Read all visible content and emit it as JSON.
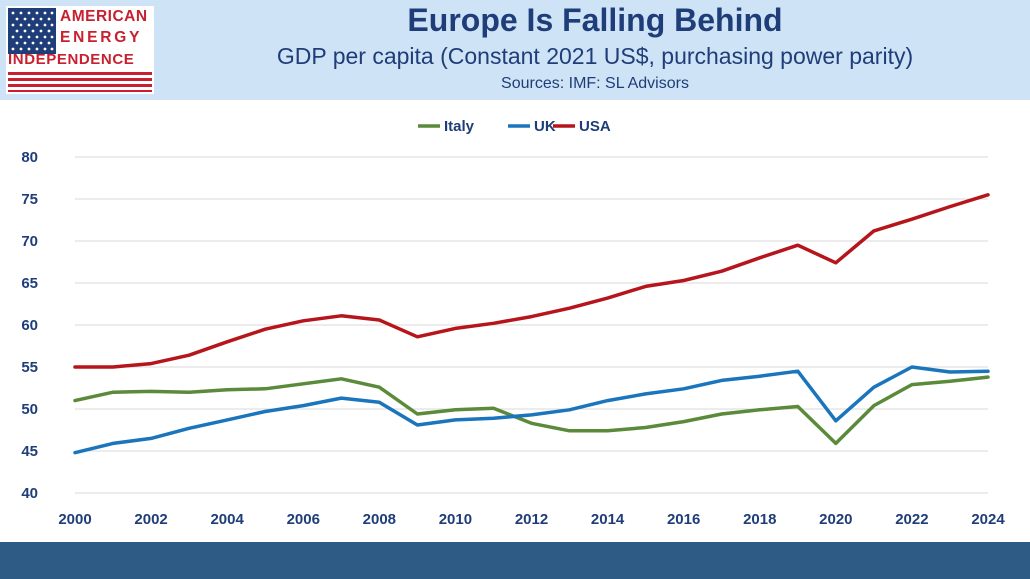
{
  "header": {
    "title": "Europe Is Falling Behind",
    "subtitle": "GDP per capita (Constant 2021 US$, purchasing power parity)",
    "sources": "Sources: IMF: SL Advisors"
  },
  "logo": {
    "line1": "AMERICAN",
    "line2": "ENERGY",
    "line3": "INDEPENDENCE",
    "flag_icon": "us-flag-icon",
    "colors": {
      "red": "#c8202f",
      "blue": "#1f3d78"
    }
  },
  "chart_data": {
    "type": "line",
    "title": "Europe Is Falling Behind",
    "xlabel": "",
    "ylabel": "",
    "ylim": [
      40,
      80
    ],
    "yticks": [
      40,
      45,
      50,
      55,
      60,
      65,
      70,
      75,
      80
    ],
    "xlim": [
      2000,
      2024
    ],
    "xticks": [
      2000,
      2002,
      2004,
      2006,
      2008,
      2010,
      2012,
      2014,
      2016,
      2018,
      2020,
      2022,
      2024
    ],
    "grid": "horizontal",
    "legend_position": "top-center",
    "x": [
      2000,
      2001,
      2002,
      2003,
      2004,
      2005,
      2006,
      2007,
      2008,
      2009,
      2010,
      2011,
      2012,
      2013,
      2014,
      2015,
      2016,
      2017,
      2018,
      2019,
      2020,
      2021,
      2022,
      2023,
      2024
    ],
    "series": [
      {
        "name": "Italy",
        "color": "#5a8a3a",
        "values": [
          51.0,
          52.0,
          52.1,
          52.0,
          52.3,
          52.4,
          53.0,
          53.6,
          52.6,
          49.4,
          49.9,
          50.1,
          48.3,
          47.4,
          47.4,
          47.8,
          48.5,
          49.4,
          49.9,
          50.3,
          45.9,
          50.4,
          52.9,
          53.3,
          53.8
        ]
      },
      {
        "name": "UK",
        "color": "#1a75bc",
        "values": [
          44.8,
          45.9,
          46.5,
          47.7,
          48.7,
          49.7,
          50.4,
          51.3,
          50.8,
          48.1,
          48.7,
          48.9,
          49.3,
          49.9,
          51.0,
          51.8,
          52.4,
          53.4,
          53.9,
          54.5,
          48.6,
          52.6,
          55.0,
          54.4,
          54.5
        ]
      },
      {
        "name": "USA",
        "color": "#b5151b",
        "values": [
          55.0,
          55.0,
          55.4,
          56.4,
          58.0,
          59.5,
          60.5,
          61.1,
          60.6,
          58.6,
          59.6,
          60.2,
          61.0,
          62.0,
          63.2,
          64.6,
          65.3,
          66.4,
          68.0,
          69.5,
          67.4,
          71.2,
          72.6,
          74.1,
          75.5
        ]
      }
    ]
  }
}
